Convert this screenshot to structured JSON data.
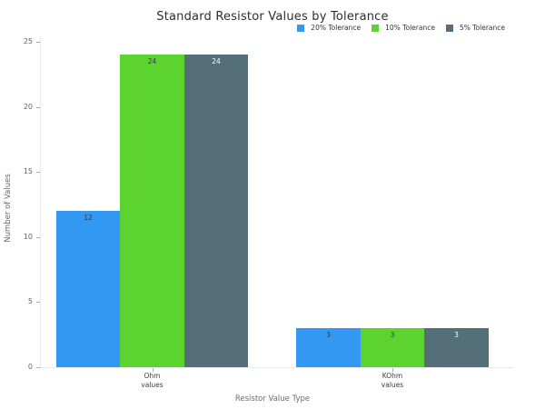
{
  "chart_data": {
    "type": "bar",
    "title": "Standard Resistor Values by Tolerance",
    "xlabel": "Resistor Value Type",
    "ylabel": "Number of Values",
    "categories": [
      "Ohm values",
      "KOhm values"
    ],
    "category_lines": [
      [
        "Ohm",
        "values"
      ],
      [
        "KOhm",
        "values"
      ]
    ],
    "series": [
      {
        "name": "20% Tolerance",
        "color": "#3298f1",
        "value_label_color": "#2c3b46",
        "values": [
          12,
          3
        ]
      },
      {
        "name": "10% Tolerance",
        "color": "#5cd32e",
        "value_label_color": "#2c3b46",
        "values": [
          24,
          3
        ]
      },
      {
        "name": "5% Tolerance",
        "color": "#546e7a",
        "value_label_color": "#ffffff",
        "values": [
          24,
          3
        ]
      }
    ],
    "ylim": [
      0,
      25
    ],
    "yticks": [
      0,
      5,
      10,
      15,
      20,
      25
    ],
    "grid": false,
    "legend_position": "top-right",
    "bar_value_labels": true
  },
  "colors": {
    "background": "#ffffff",
    "axis_line": "#e7e8ec",
    "tick_text": "#5f6368",
    "title_text": "#2d2d2d"
  }
}
